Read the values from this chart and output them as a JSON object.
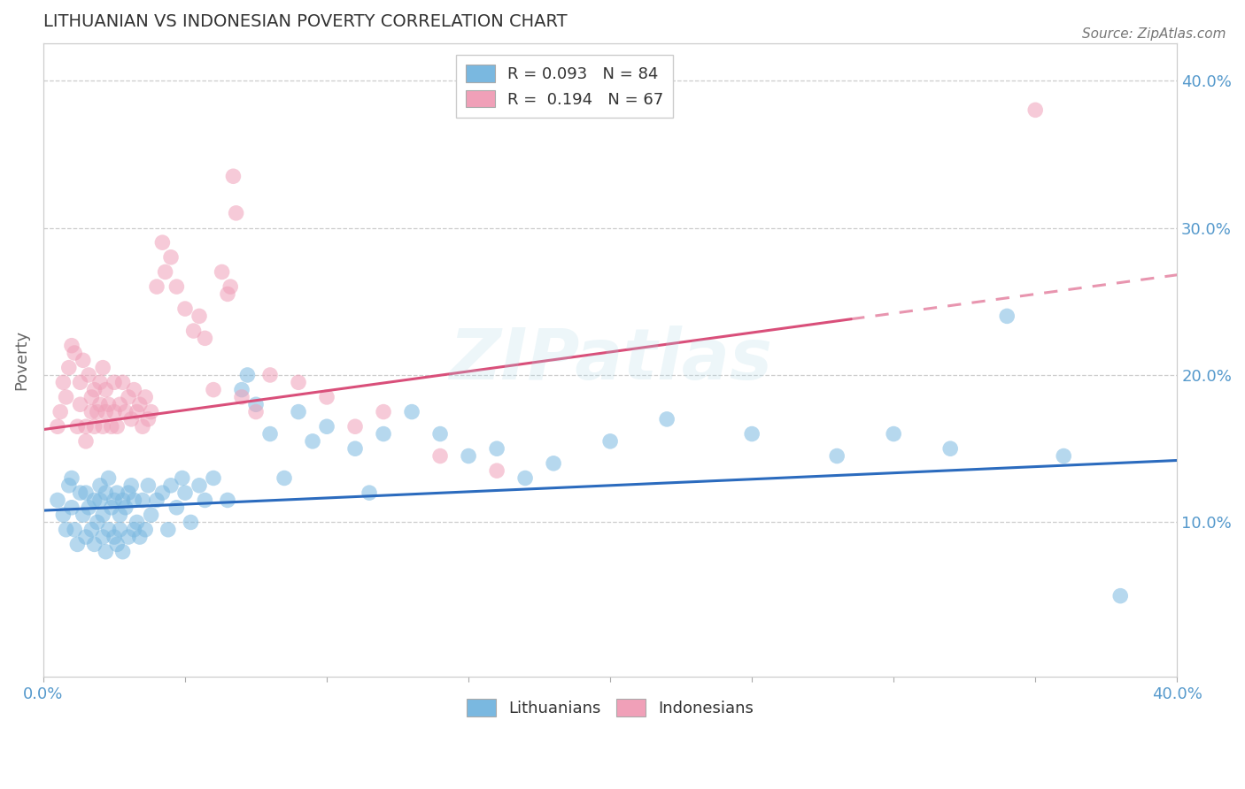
{
  "title": "LITHUANIAN VS INDONESIAN POVERTY CORRELATION CHART",
  "source": "Source: ZipAtlas.com",
  "ylabel": "Poverty",
  "xlim": [
    0.0,
    0.4
  ],
  "ylim": [
    -0.005,
    0.425
  ],
  "yticks": [
    0.1,
    0.2,
    0.3,
    0.4
  ],
  "ytick_labels": [
    "10.0%",
    "20.0%",
    "30.0%",
    "40.0%"
  ],
  "watermark": "ZIPatlas",
  "legend_r1": "R = 0.093   N = 84",
  "legend_r2": "R =  0.194   N = 67",
  "blue_color": "#7ab8e0",
  "pink_color": "#f0a0b8",
  "blue_line_color": "#2b6bbe",
  "pink_line_color": "#d94f7a",
  "background_color": "#ffffff",
  "grid_color": "#c8c8c8",
  "title_color": "#333333",
  "blue_scatter": [
    [
      0.005,
      0.115
    ],
    [
      0.007,
      0.105
    ],
    [
      0.008,
      0.095
    ],
    [
      0.009,
      0.125
    ],
    [
      0.01,
      0.11
    ],
    [
      0.01,
      0.13
    ],
    [
      0.011,
      0.095
    ],
    [
      0.012,
      0.085
    ],
    [
      0.013,
      0.12
    ],
    [
      0.014,
      0.105
    ],
    [
      0.015,
      0.09
    ],
    [
      0.015,
      0.12
    ],
    [
      0.016,
      0.11
    ],
    [
      0.017,
      0.095
    ],
    [
      0.018,
      0.085
    ],
    [
      0.018,
      0.115
    ],
    [
      0.019,
      0.1
    ],
    [
      0.02,
      0.115
    ],
    [
      0.02,
      0.125
    ],
    [
      0.021,
      0.09
    ],
    [
      0.021,
      0.105
    ],
    [
      0.022,
      0.12
    ],
    [
      0.022,
      0.08
    ],
    [
      0.023,
      0.13
    ],
    [
      0.023,
      0.095
    ],
    [
      0.024,
      0.11
    ],
    [
      0.025,
      0.115
    ],
    [
      0.025,
      0.09
    ],
    [
      0.026,
      0.12
    ],
    [
      0.026,
      0.085
    ],
    [
      0.027,
      0.105
    ],
    [
      0.027,
      0.095
    ],
    [
      0.028,
      0.115
    ],
    [
      0.028,
      0.08
    ],
    [
      0.029,
      0.11
    ],
    [
      0.03,
      0.12
    ],
    [
      0.03,
      0.09
    ],
    [
      0.031,
      0.125
    ],
    [
      0.032,
      0.095
    ],
    [
      0.032,
      0.115
    ],
    [
      0.033,
      0.1
    ],
    [
      0.034,
      0.09
    ],
    [
      0.035,
      0.115
    ],
    [
      0.036,
      0.095
    ],
    [
      0.037,
      0.125
    ],
    [
      0.038,
      0.105
    ],
    [
      0.04,
      0.115
    ],
    [
      0.042,
      0.12
    ],
    [
      0.044,
      0.095
    ],
    [
      0.045,
      0.125
    ],
    [
      0.047,
      0.11
    ],
    [
      0.049,
      0.13
    ],
    [
      0.05,
      0.12
    ],
    [
      0.052,
      0.1
    ],
    [
      0.055,
      0.125
    ],
    [
      0.057,
      0.115
    ],
    [
      0.06,
      0.13
    ],
    [
      0.065,
      0.115
    ],
    [
      0.07,
      0.19
    ],
    [
      0.072,
      0.2
    ],
    [
      0.075,
      0.18
    ],
    [
      0.08,
      0.16
    ],
    [
      0.085,
      0.13
    ],
    [
      0.09,
      0.175
    ],
    [
      0.095,
      0.155
    ],
    [
      0.1,
      0.165
    ],
    [
      0.11,
      0.15
    ],
    [
      0.115,
      0.12
    ],
    [
      0.12,
      0.16
    ],
    [
      0.13,
      0.175
    ],
    [
      0.14,
      0.16
    ],
    [
      0.15,
      0.145
    ],
    [
      0.16,
      0.15
    ],
    [
      0.17,
      0.13
    ],
    [
      0.18,
      0.14
    ],
    [
      0.2,
      0.155
    ],
    [
      0.22,
      0.17
    ],
    [
      0.25,
      0.16
    ],
    [
      0.28,
      0.145
    ],
    [
      0.3,
      0.16
    ],
    [
      0.32,
      0.15
    ],
    [
      0.34,
      0.24
    ],
    [
      0.36,
      0.145
    ],
    [
      0.38,
      0.05
    ]
  ],
  "pink_scatter": [
    [
      0.005,
      0.165
    ],
    [
      0.006,
      0.175
    ],
    [
      0.007,
      0.195
    ],
    [
      0.008,
      0.185
    ],
    [
      0.009,
      0.205
    ],
    [
      0.01,
      0.22
    ],
    [
      0.011,
      0.215
    ],
    [
      0.012,
      0.165
    ],
    [
      0.013,
      0.195
    ],
    [
      0.013,
      0.18
    ],
    [
      0.014,
      0.21
    ],
    [
      0.015,
      0.165
    ],
    [
      0.015,
      0.155
    ],
    [
      0.016,
      0.2
    ],
    [
      0.017,
      0.175
    ],
    [
      0.017,
      0.185
    ],
    [
      0.018,
      0.19
    ],
    [
      0.018,
      0.165
    ],
    [
      0.019,
      0.175
    ],
    [
      0.02,
      0.18
    ],
    [
      0.02,
      0.195
    ],
    [
      0.021,
      0.205
    ],
    [
      0.021,
      0.165
    ],
    [
      0.022,
      0.175
    ],
    [
      0.022,
      0.19
    ],
    [
      0.023,
      0.18
    ],
    [
      0.024,
      0.165
    ],
    [
      0.025,
      0.175
    ],
    [
      0.025,
      0.195
    ],
    [
      0.026,
      0.165
    ],
    [
      0.027,
      0.18
    ],
    [
      0.028,
      0.195
    ],
    [
      0.029,
      0.175
    ],
    [
      0.03,
      0.185
    ],
    [
      0.031,
      0.17
    ],
    [
      0.032,
      0.19
    ],
    [
      0.033,
      0.175
    ],
    [
      0.034,
      0.18
    ],
    [
      0.035,
      0.165
    ],
    [
      0.036,
      0.185
    ],
    [
      0.037,
      0.17
    ],
    [
      0.038,
      0.175
    ],
    [
      0.04,
      0.26
    ],
    [
      0.042,
      0.29
    ],
    [
      0.043,
      0.27
    ],
    [
      0.045,
      0.28
    ],
    [
      0.047,
      0.26
    ],
    [
      0.05,
      0.245
    ],
    [
      0.053,
      0.23
    ],
    [
      0.055,
      0.24
    ],
    [
      0.057,
      0.225
    ],
    [
      0.06,
      0.19
    ],
    [
      0.063,
      0.27
    ],
    [
      0.065,
      0.255
    ],
    [
      0.066,
      0.26
    ],
    [
      0.067,
      0.335
    ],
    [
      0.068,
      0.31
    ],
    [
      0.07,
      0.185
    ],
    [
      0.075,
      0.175
    ],
    [
      0.08,
      0.2
    ],
    [
      0.09,
      0.195
    ],
    [
      0.1,
      0.185
    ],
    [
      0.11,
      0.165
    ],
    [
      0.12,
      0.175
    ],
    [
      0.14,
      0.145
    ],
    [
      0.16,
      0.135
    ],
    [
      0.35,
      0.38
    ]
  ],
  "blue_trend_solid": {
    "x_start": 0.0,
    "y_start": 0.108,
    "x_end": 0.4,
    "y_end": 0.142
  },
  "pink_trend_solid": {
    "x_start": 0.0,
    "y_start": 0.163,
    "x_end": 0.285,
    "y_end": 0.238
  },
  "pink_trend_dashed": {
    "x_start": 0.285,
    "y_start": 0.238,
    "x_end": 0.4,
    "y_end": 0.268
  }
}
